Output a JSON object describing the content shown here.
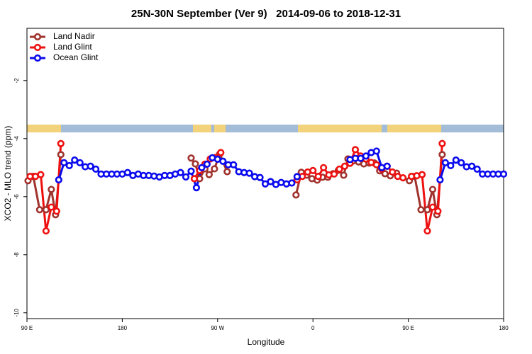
{
  "chart_data": {
    "type": "line",
    "title": "25N-30N September (Ver 9)   2014-09-06 to 2018-12-31",
    "x_label": "Longitude",
    "y_label": "XCO2 - MLO trend (ppm)",
    "xlim": [
      90,
      540
    ],
    "ylim": [
      -10.2,
      -0.2
    ],
    "xticks": [
      {
        "value": 90,
        "label": "90 E"
      },
      180,
      {
        "value": 270,
        "label": "90 W"
      },
      {
        "value": 360,
        "label": "0"
      },
      {
        "value": 450,
        "label": "90 E"
      },
      {
        "value": 540,
        "label": "180"
      }
    ],
    "yticks": [
      -10,
      -8,
      -6,
      -4,
      -2
    ],
    "legend": "top-left",
    "series": [
      {
        "name": "Land Nadir",
        "color": "#a0332e",
        "x": [
          91,
          96,
          102,
          108,
          113,
          117,
          122,
          180,
          245,
          249,
          253,
          258,
          262,
          267,
          272,
          279,
          310,
          344,
          349,
          354,
          359,
          364,
          369,
          374,
          379,
          384,
          389,
          393,
          398,
          403,
          408,
          413,
          418,
          423,
          428,
          433,
          439,
          445,
          451,
          456,
          462,
          468,
          473,
          477,
          482
        ],
        "values": [
          -5.45,
          -5.3,
          -6.45,
          -6.45,
          -5.75,
          -6.62,
          -4.55,
          null,
          -4.67,
          -4.87,
          -5.38,
          -5.04,
          -5.24,
          -5.04,
          -4.53,
          -5.14,
          null,
          -5.94,
          -5.16,
          -5.26,
          -5.38,
          -5.43,
          -5.33,
          -5.33,
          -5.21,
          -5.09,
          -5.26,
          -4.7,
          -4.77,
          -4.8,
          -4.87,
          -4.84,
          -4.84,
          -5.11,
          -5.21,
          -5.28,
          -5.19,
          null,
          -5.45,
          -5.3,
          -6.45,
          -6.45,
          -5.75,
          -6.62,
          -4.55
        ]
      },
      {
        "name": "Land Glint",
        "color": "#ee1111",
        "x": [
          93,
          98,
          103,
          108,
          113,
          118,
          122,
          180,
          248,
          253,
          258,
          263,
          268,
          273,
          310,
          345,
          350,
          355,
          360,
          365,
          370,
          375,
          380,
          385,
          390,
          395,
          400,
          405,
          410,
          415,
          420,
          425,
          430,
          435,
          440,
          445,
          449,
          453,
          458,
          463,
          468,
          473,
          478,
          482
        ],
        "values": [
          -5.3,
          -5.3,
          -5.24,
          -7.18,
          -6.36,
          -6.5,
          -4.17,
          null,
          -5.38,
          -5.1,
          -4.88,
          -4.7,
          -4.65,
          -4.48,
          null,
          -5.42,
          -5.3,
          -5.15,
          -5.1,
          -5.3,
          -5.0,
          -5.25,
          -5.22,
          -5.05,
          -4.95,
          -4.85,
          -4.38,
          -4.6,
          -4.7,
          -4.82,
          -4.9,
          -5.05,
          -4.95,
          -5.15,
          -5.3,
          -5.35,
          null,
          -5.3,
          -5.28,
          -5.24,
          -7.18,
          -6.36,
          -6.5,
          -4.17
        ]
      },
      {
        "name": "Ocean Glint",
        "color": "#0a0aee",
        "x": [
          120,
          125,
          130,
          135,
          140,
          145,
          150,
          155,
          160,
          165,
          170,
          175,
          180,
          185,
          190,
          195,
          200,
          205,
          210,
          215,
          220,
          225,
          230,
          235,
          240,
          245,
          250,
          255,
          260,
          265,
          270,
          275,
          280,
          285,
          290,
          295,
          300,
          305,
          310,
          315,
          320,
          325,
          330,
          335,
          340,
          345,
          370,
          395,
          400,
          405,
          410,
          415,
          420,
          425,
          430,
          455,
          480,
          485,
          490,
          495,
          500,
          505,
          510,
          515,
          520,
          525,
          530,
          535,
          540
        ],
        "values": [
          -5.42,
          -4.83,
          -4.93,
          -4.74,
          -4.83,
          -4.97,
          -4.95,
          -5.05,
          -5.22,
          -5.22,
          -5.22,
          -5.22,
          -5.22,
          -5.17,
          -5.27,
          -5.22,
          -5.27,
          -5.27,
          -5.29,
          -5.32,
          -5.27,
          -5.27,
          -5.22,
          -5.17,
          -5.32,
          -5.12,
          -5.69,
          -5.0,
          -4.88,
          -4.66,
          -4.71,
          -4.78,
          -4.9,
          -4.9,
          -5.14,
          -5.17,
          -5.19,
          -5.31,
          -5.34,
          -5.56,
          -5.48,
          -5.58,
          -5.51,
          -5.56,
          -5.53,
          -5.31,
          null,
          -4.72,
          -4.68,
          -4.68,
          -4.6,
          -4.48,
          -4.43,
          -5.0,
          -4.95,
          null,
          -5.42,
          -4.83,
          -4.93,
          -4.74,
          -4.83,
          -4.97,
          -4.95,
          -5.05,
          -5.22,
          -5.22,
          -5.22,
          -5.22,
          -5.22
        ]
      }
    ]
  }
}
